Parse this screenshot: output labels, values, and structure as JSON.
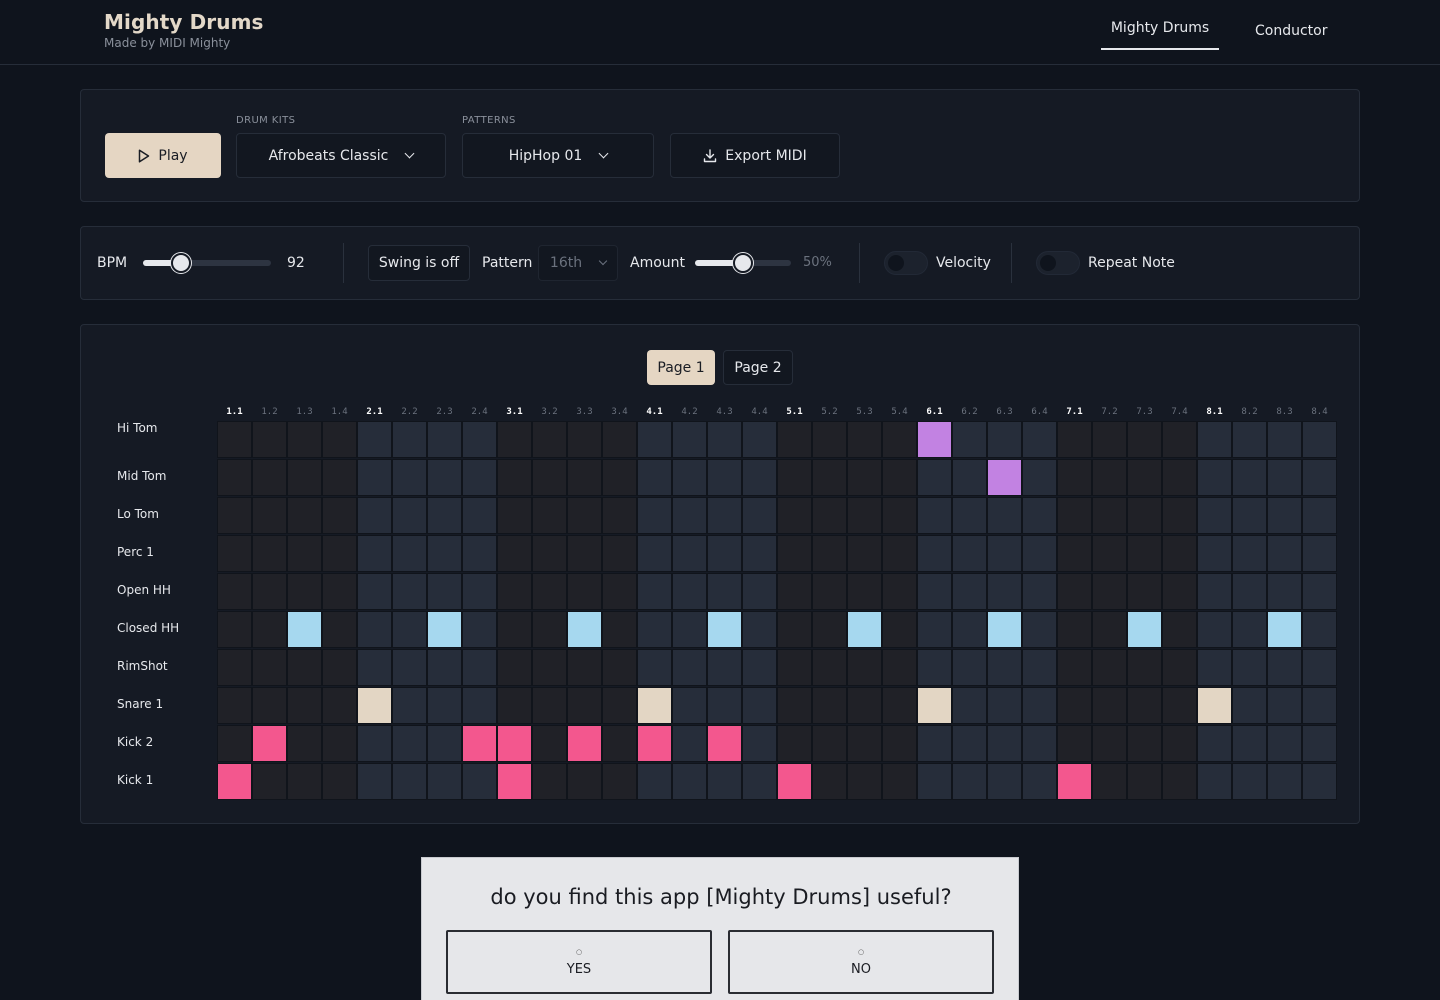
{
  "header": {
    "title": "Mighty Drums",
    "subtitle": "Made by MIDI Mighty",
    "tabs": [
      {
        "label": "Mighty Drums",
        "active": true
      },
      {
        "label": "Conductor",
        "active": false
      }
    ]
  },
  "toolbar": {
    "play_label": "Play",
    "drum_kits_label": "DRUM KITS",
    "drum_kit_value": "Afrobeats Classic",
    "patterns_label": "PATTERNS",
    "pattern_value": "HipHop 01",
    "export_label": "Export MIDI"
  },
  "controls": {
    "bpm_label": "BPM",
    "bpm_value": "92",
    "bpm_level": 0.3,
    "swing_label": "Swing is off",
    "pattern_label": "Pattern",
    "pattern_resolution": "16th",
    "amount_label": "Amount",
    "amount_value": "50%",
    "amount_level": 0.5,
    "velocity_label": "Velocity",
    "velocity_on": false,
    "repeat_label": "Repeat Note",
    "repeat_on": false
  },
  "sequencer": {
    "pages": [
      {
        "label": "Page 1",
        "active": true
      },
      {
        "label": "Page 2",
        "active": false
      }
    ],
    "steps": [
      "1.1",
      "1.2",
      "1.3",
      "1.4",
      "2.1",
      "2.2",
      "2.3",
      "2.4",
      "3.1",
      "3.2",
      "3.3",
      "3.4",
      "4.1",
      "4.2",
      "4.3",
      "4.4",
      "5.1",
      "5.2",
      "5.3",
      "5.4",
      "6.1",
      "6.2",
      "6.3",
      "6.4",
      "7.1",
      "7.2",
      "7.3",
      "7.4",
      "8.1",
      "8.2",
      "8.3",
      "8.4"
    ],
    "rows": [
      {
        "label": "Hi Tom",
        "color": "#c282e2",
        "active": [
          20
        ]
      },
      {
        "label": "Mid Tom",
        "color": "#c282e2",
        "active": [
          22
        ]
      },
      {
        "label": "Lo Tom",
        "color": "#c282e2",
        "active": []
      },
      {
        "label": "Perc 1",
        "color": "#c282e2",
        "active": []
      },
      {
        "label": "Open HH",
        "color": "#a6d8ef",
        "active": []
      },
      {
        "label": "Closed HH",
        "color": "#a6d8ef",
        "active": [
          2,
          6,
          10,
          14,
          18,
          22,
          26,
          30
        ]
      },
      {
        "label": "RimShot",
        "color": "#e3d6c4",
        "active": []
      },
      {
        "label": "Snare 1",
        "color": "#e3d6c4",
        "active": [
          4,
          12,
          20,
          28
        ]
      },
      {
        "label": "Kick 2",
        "color": "#f3578e",
        "active": [
          1,
          7,
          8,
          10,
          12,
          14
        ]
      },
      {
        "label": "Kick 1",
        "color": "#f3578e",
        "active": [
          0,
          8,
          16,
          24
        ]
      }
    ]
  },
  "feedback": {
    "question": "do you find this app [Mighty Drums] useful?",
    "yes_label": "YES",
    "no_label": "NO",
    "yes_icon": "thumbs-up-icon",
    "no_icon": "thumbs-down-icon"
  }
}
